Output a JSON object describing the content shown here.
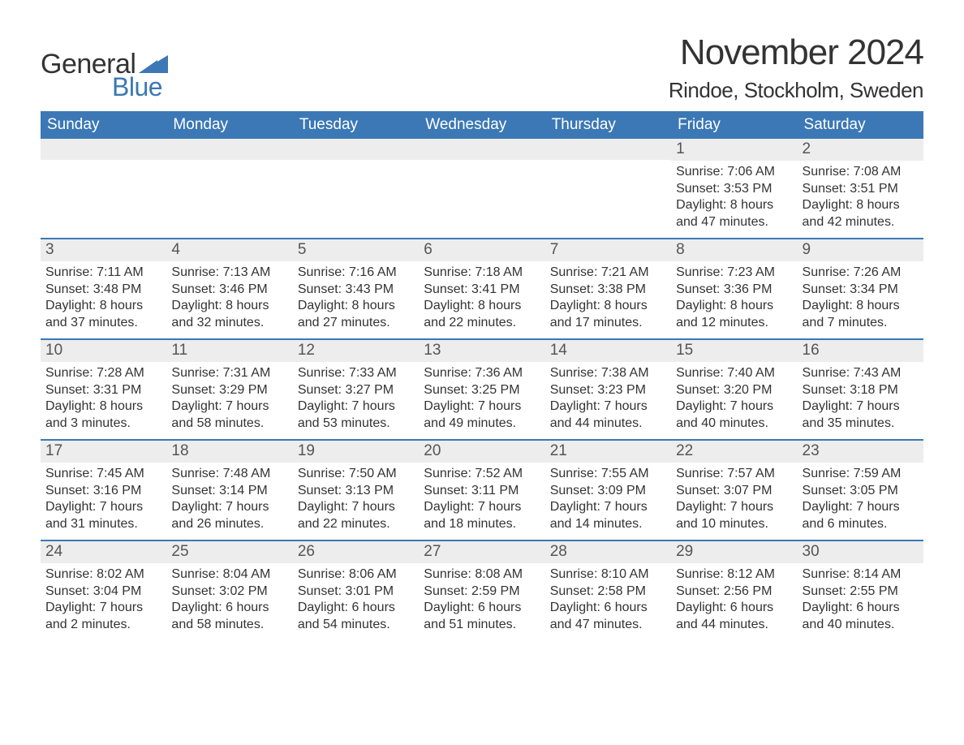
{
  "logo": {
    "text1": "General",
    "text2": "Blue",
    "sail_color": "#3b78b5"
  },
  "title": "November 2024",
  "location": "Rindoe, Stockholm, Sweden",
  "colors": {
    "header_bg": "#3b78b5",
    "header_text": "#ffffff",
    "daynum_bg": "#ededed",
    "text": "#333333",
    "row_border": "#3b78b5"
  },
  "weekdays": [
    "Sunday",
    "Monday",
    "Tuesday",
    "Wednesday",
    "Thursday",
    "Friday",
    "Saturday"
  ],
  "weeks": [
    [
      null,
      null,
      null,
      null,
      null,
      {
        "day": "1",
        "sunrise": "Sunrise: 7:06 AM",
        "sunset": "Sunset: 3:53 PM",
        "daylight1": "Daylight: 8 hours",
        "daylight2": "and 47 minutes."
      },
      {
        "day": "2",
        "sunrise": "Sunrise: 7:08 AM",
        "sunset": "Sunset: 3:51 PM",
        "daylight1": "Daylight: 8 hours",
        "daylight2": "and 42 minutes."
      }
    ],
    [
      {
        "day": "3",
        "sunrise": "Sunrise: 7:11 AM",
        "sunset": "Sunset: 3:48 PM",
        "daylight1": "Daylight: 8 hours",
        "daylight2": "and 37 minutes."
      },
      {
        "day": "4",
        "sunrise": "Sunrise: 7:13 AM",
        "sunset": "Sunset: 3:46 PM",
        "daylight1": "Daylight: 8 hours",
        "daylight2": "and 32 minutes."
      },
      {
        "day": "5",
        "sunrise": "Sunrise: 7:16 AM",
        "sunset": "Sunset: 3:43 PM",
        "daylight1": "Daylight: 8 hours",
        "daylight2": "and 27 minutes."
      },
      {
        "day": "6",
        "sunrise": "Sunrise: 7:18 AM",
        "sunset": "Sunset: 3:41 PM",
        "daylight1": "Daylight: 8 hours",
        "daylight2": "and 22 minutes."
      },
      {
        "day": "7",
        "sunrise": "Sunrise: 7:21 AM",
        "sunset": "Sunset: 3:38 PM",
        "daylight1": "Daylight: 8 hours",
        "daylight2": "and 17 minutes."
      },
      {
        "day": "8",
        "sunrise": "Sunrise: 7:23 AM",
        "sunset": "Sunset: 3:36 PM",
        "daylight1": "Daylight: 8 hours",
        "daylight2": "and 12 minutes."
      },
      {
        "day": "9",
        "sunrise": "Sunrise: 7:26 AM",
        "sunset": "Sunset: 3:34 PM",
        "daylight1": "Daylight: 8 hours",
        "daylight2": "and 7 minutes."
      }
    ],
    [
      {
        "day": "10",
        "sunrise": "Sunrise: 7:28 AM",
        "sunset": "Sunset: 3:31 PM",
        "daylight1": "Daylight: 8 hours",
        "daylight2": "and 3 minutes."
      },
      {
        "day": "11",
        "sunrise": "Sunrise: 7:31 AM",
        "sunset": "Sunset: 3:29 PM",
        "daylight1": "Daylight: 7 hours",
        "daylight2": "and 58 minutes."
      },
      {
        "day": "12",
        "sunrise": "Sunrise: 7:33 AM",
        "sunset": "Sunset: 3:27 PM",
        "daylight1": "Daylight: 7 hours",
        "daylight2": "and 53 minutes."
      },
      {
        "day": "13",
        "sunrise": "Sunrise: 7:36 AM",
        "sunset": "Sunset: 3:25 PM",
        "daylight1": "Daylight: 7 hours",
        "daylight2": "and 49 minutes."
      },
      {
        "day": "14",
        "sunrise": "Sunrise: 7:38 AM",
        "sunset": "Sunset: 3:23 PM",
        "daylight1": "Daylight: 7 hours",
        "daylight2": "and 44 minutes."
      },
      {
        "day": "15",
        "sunrise": "Sunrise: 7:40 AM",
        "sunset": "Sunset: 3:20 PM",
        "daylight1": "Daylight: 7 hours",
        "daylight2": "and 40 minutes."
      },
      {
        "day": "16",
        "sunrise": "Sunrise: 7:43 AM",
        "sunset": "Sunset: 3:18 PM",
        "daylight1": "Daylight: 7 hours",
        "daylight2": "and 35 minutes."
      }
    ],
    [
      {
        "day": "17",
        "sunrise": "Sunrise: 7:45 AM",
        "sunset": "Sunset: 3:16 PM",
        "daylight1": "Daylight: 7 hours",
        "daylight2": "and 31 minutes."
      },
      {
        "day": "18",
        "sunrise": "Sunrise: 7:48 AM",
        "sunset": "Sunset: 3:14 PM",
        "daylight1": "Daylight: 7 hours",
        "daylight2": "and 26 minutes."
      },
      {
        "day": "19",
        "sunrise": "Sunrise: 7:50 AM",
        "sunset": "Sunset: 3:13 PM",
        "daylight1": "Daylight: 7 hours",
        "daylight2": "and 22 minutes."
      },
      {
        "day": "20",
        "sunrise": "Sunrise: 7:52 AM",
        "sunset": "Sunset: 3:11 PM",
        "daylight1": "Daylight: 7 hours",
        "daylight2": "and 18 minutes."
      },
      {
        "day": "21",
        "sunrise": "Sunrise: 7:55 AM",
        "sunset": "Sunset: 3:09 PM",
        "daylight1": "Daylight: 7 hours",
        "daylight2": "and 14 minutes."
      },
      {
        "day": "22",
        "sunrise": "Sunrise: 7:57 AM",
        "sunset": "Sunset: 3:07 PM",
        "daylight1": "Daylight: 7 hours",
        "daylight2": "and 10 minutes."
      },
      {
        "day": "23",
        "sunrise": "Sunrise: 7:59 AM",
        "sunset": "Sunset: 3:05 PM",
        "daylight1": "Daylight: 7 hours",
        "daylight2": "and 6 minutes."
      }
    ],
    [
      {
        "day": "24",
        "sunrise": "Sunrise: 8:02 AM",
        "sunset": "Sunset: 3:04 PM",
        "daylight1": "Daylight: 7 hours",
        "daylight2": "and 2 minutes."
      },
      {
        "day": "25",
        "sunrise": "Sunrise: 8:04 AM",
        "sunset": "Sunset: 3:02 PM",
        "daylight1": "Daylight: 6 hours",
        "daylight2": "and 58 minutes."
      },
      {
        "day": "26",
        "sunrise": "Sunrise: 8:06 AM",
        "sunset": "Sunset: 3:01 PM",
        "daylight1": "Daylight: 6 hours",
        "daylight2": "and 54 minutes."
      },
      {
        "day": "27",
        "sunrise": "Sunrise: 8:08 AM",
        "sunset": "Sunset: 2:59 PM",
        "daylight1": "Daylight: 6 hours",
        "daylight2": "and 51 minutes."
      },
      {
        "day": "28",
        "sunrise": "Sunrise: 8:10 AM",
        "sunset": "Sunset: 2:58 PM",
        "daylight1": "Daylight: 6 hours",
        "daylight2": "and 47 minutes."
      },
      {
        "day": "29",
        "sunrise": "Sunrise: 8:12 AM",
        "sunset": "Sunset: 2:56 PM",
        "daylight1": "Daylight: 6 hours",
        "daylight2": "and 44 minutes."
      },
      {
        "day": "30",
        "sunrise": "Sunrise: 8:14 AM",
        "sunset": "Sunset: 2:55 PM",
        "daylight1": "Daylight: 6 hours",
        "daylight2": "and 40 minutes."
      }
    ]
  ]
}
